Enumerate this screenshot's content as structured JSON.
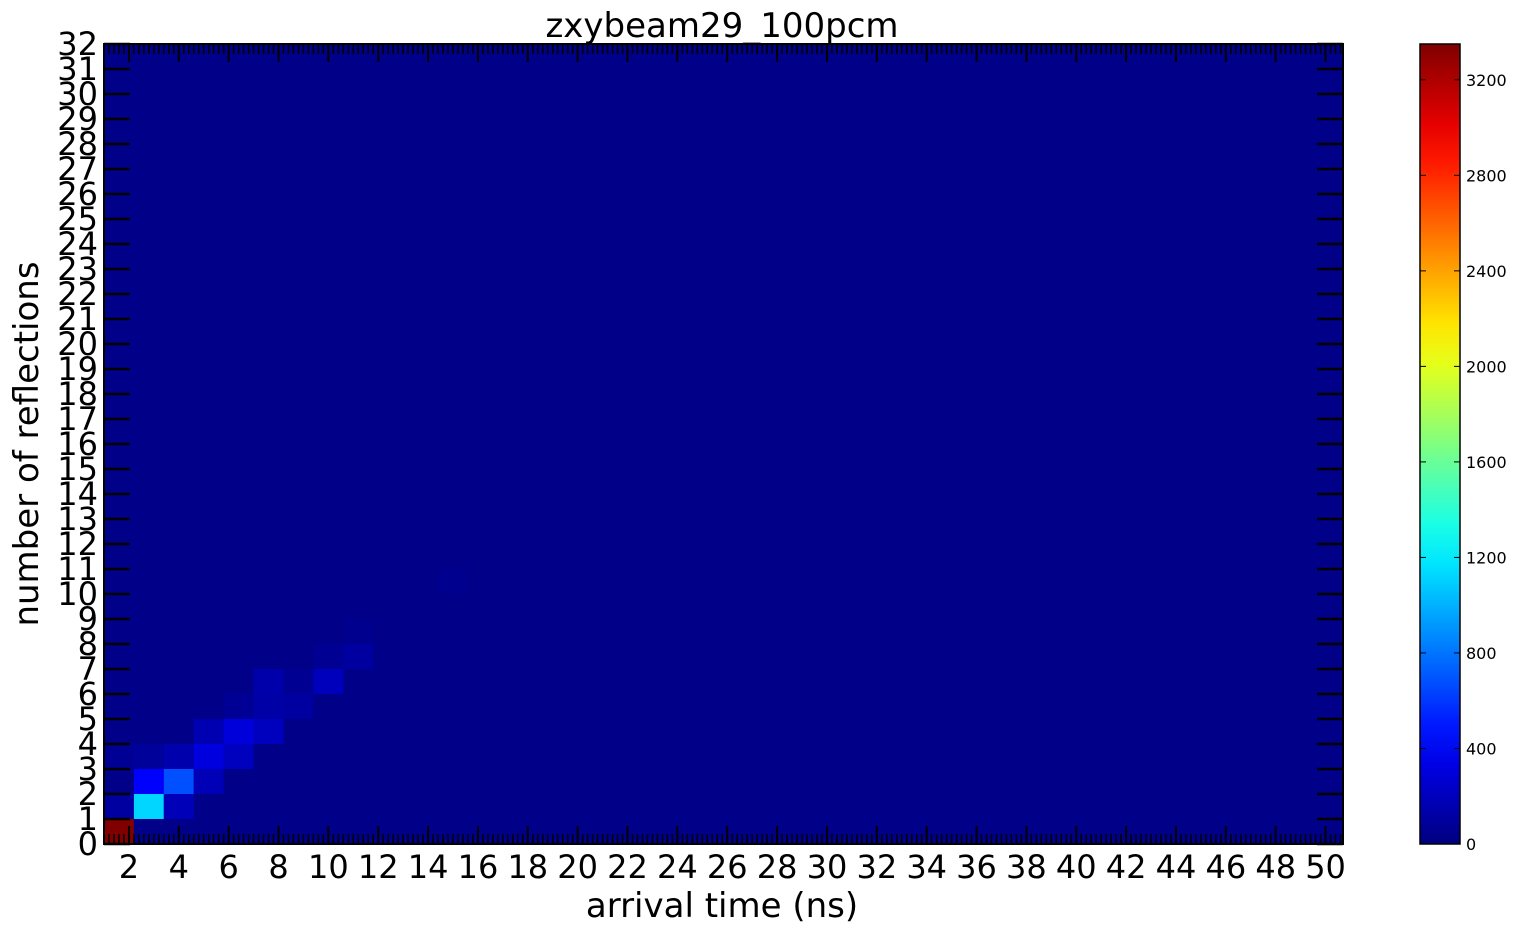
{
  "chart_data": {
    "type": "heatmap",
    "title": "zxybeam29_100pcm",
    "xlabel": "arrival time (ns)",
    "ylabel": "number of reflections",
    "xlim": [
      1,
      50.7
    ],
    "ylim": [
      0,
      32
    ],
    "x_bin_width": 1.2,
    "y_bin_width": 1,
    "x_ticks": [
      2,
      4,
      6,
      8,
      10,
      12,
      14,
      16,
      18,
      20,
      22,
      24,
      26,
      28,
      30,
      32,
      34,
      36,
      38,
      40,
      42,
      44,
      46,
      48,
      50
    ],
    "y_ticks": [
      0,
      1,
      2,
      3,
      4,
      5,
      6,
      7,
      8,
      9,
      10,
      11,
      12,
      13,
      14,
      15,
      16,
      17,
      18,
      19,
      20,
      21,
      22,
      23,
      24,
      25,
      26,
      27,
      28,
      29,
      30,
      31,
      32
    ],
    "colorbar": {
      "min": 0,
      "max": 3350,
      "ticks": [
        0,
        400,
        800,
        1200,
        1600,
        2000,
        2400,
        2800,
        3200
      ],
      "colormap": "jet"
    },
    "background_value": 30,
    "cells": [
      {
        "x": 1.6,
        "y": 0.5,
        "value": 3350
      },
      {
        "x": 1.6,
        "y": 1.5,
        "value": 110
      },
      {
        "x": 2.8,
        "y": 1.5,
        "value": 1120
      },
      {
        "x": 4.0,
        "y": 1.5,
        "value": 190
      },
      {
        "x": 2.8,
        "y": 2.5,
        "value": 420
      },
      {
        "x": 4.0,
        "y": 2.5,
        "value": 680
      },
      {
        "x": 5.2,
        "y": 2.5,
        "value": 180
      },
      {
        "x": 1.6,
        "y": 3.5,
        "value": 70
      },
      {
        "x": 2.8,
        "y": 3.5,
        "value": 90
      },
      {
        "x": 4.0,
        "y": 3.5,
        "value": 150
      },
      {
        "x": 5.2,
        "y": 3.5,
        "value": 310
      },
      {
        "x": 6.4,
        "y": 3.5,
        "value": 210
      },
      {
        "x": 5.2,
        "y": 4.5,
        "value": 170
      },
      {
        "x": 6.4,
        "y": 4.5,
        "value": 300
      },
      {
        "x": 7.6,
        "y": 4.5,
        "value": 210
      },
      {
        "x": 6.4,
        "y": 5.5,
        "value": 70
      },
      {
        "x": 7.6,
        "y": 5.5,
        "value": 130
      },
      {
        "x": 8.8,
        "y": 5.5,
        "value": 110
      },
      {
        "x": 7.6,
        "y": 6.5,
        "value": 140
      },
      {
        "x": 8.8,
        "y": 6.5,
        "value": 60
      },
      {
        "x": 10.0,
        "y": 6.5,
        "value": 200
      },
      {
        "x": 10.0,
        "y": 7.5,
        "value": 60
      },
      {
        "x": 11.2,
        "y": 7.5,
        "value": 110
      },
      {
        "x": 11.2,
        "y": 8.5,
        "value": 50
      },
      {
        "x": 15.0,
        "y": 10.5,
        "value": 50
      }
    ]
  }
}
